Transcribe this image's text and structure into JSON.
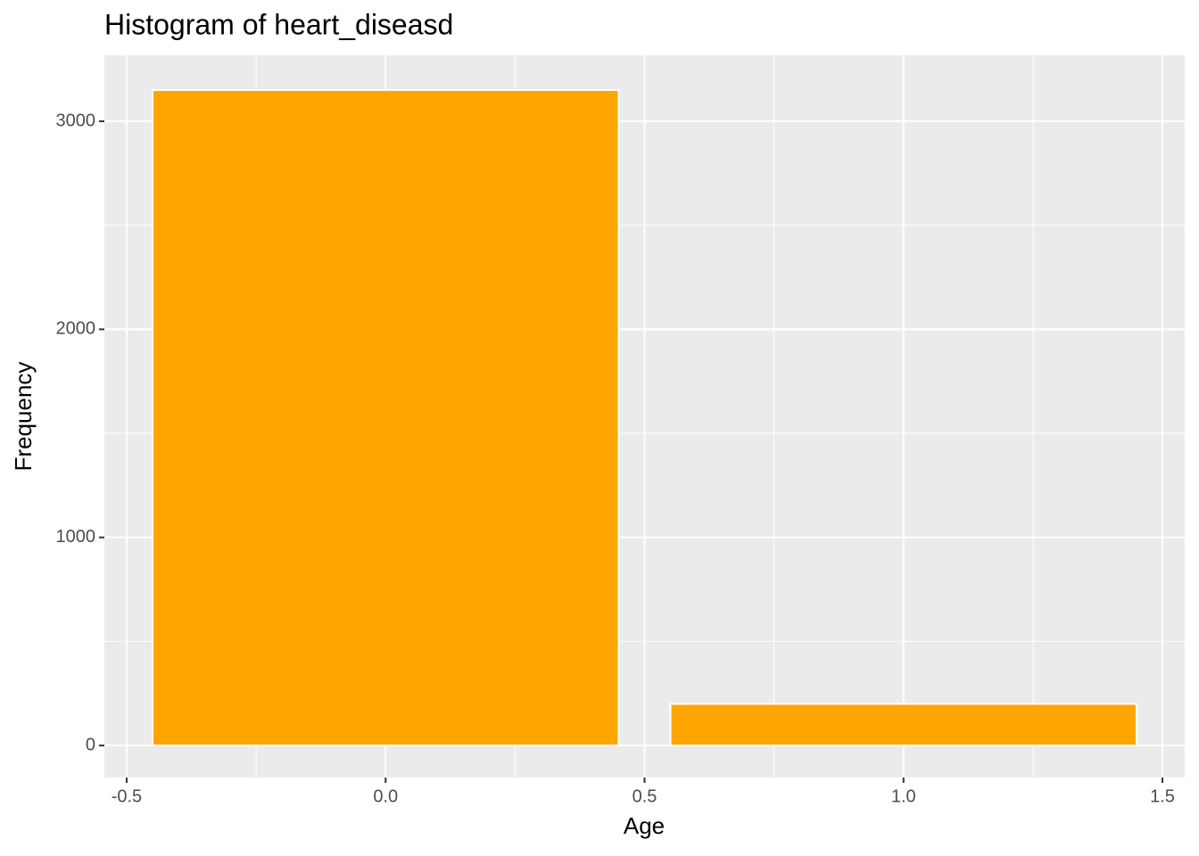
{
  "chart_data": {
    "type": "bar",
    "title": "Histogram of heart_diseasd",
    "x_label": "Age",
    "y_label": "Frequency",
    "x": [
      0,
      1
    ],
    "values": [
      3150,
      200
    ],
    "bar_width": 0.9,
    "color": "#ffa500",
    "edge_color": "#ffffff",
    "xlim": [
      -0.543,
      1.543
    ],
    "xticks": [
      {
        "value": -0.5,
        "label": "-0.5"
      },
      {
        "value": 0,
        "label": "0.0"
      },
      0.5,
      {
        "value": 1,
        "label": "1.0"
      },
      1.5
    ],
    "ylim": [
      -154,
      3317
    ],
    "yticks": [
      0,
      1000,
      2000,
      3000
    ],
    "grid": true
  }
}
